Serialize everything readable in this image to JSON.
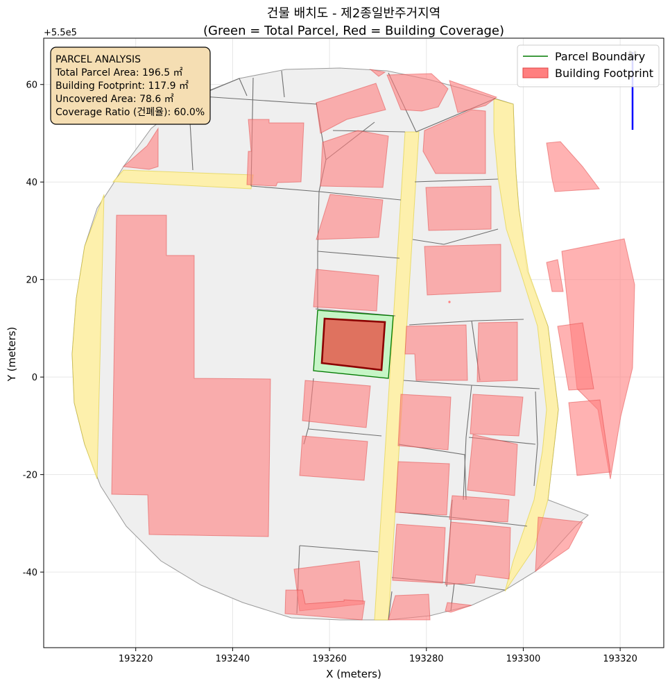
{
  "figure": {
    "title_line1": "건물 배치도 - 제2종일반주거지역",
    "title_line2": "(Green = Total Parcel, Red = Building Coverage)",
    "xlabel": "X (meters)",
    "ylabel": "Y (meters)",
    "y_offset_label": "+5.5e5"
  },
  "info_box": {
    "heading": "PARCEL ANALYSIS",
    "total_area": "Total Parcel Area: 196.5 ㎡",
    "footprint": "Building Footprint: 117.9 ㎡",
    "uncovered": "Uncovered Area: 78.6 ㎡",
    "coverage": "Coverage Ratio (건폐율): 60.0%"
  },
  "legend": {
    "parcel_label": "Parcel Boundary",
    "building_label": "Building Footprint"
  },
  "colors": {
    "parcel_edge": "#007a00",
    "parcel_fill": "#c6f5c6",
    "building_fill": "#ff7f7f",
    "building_edge": "#8b0000",
    "road": "#fff0a0",
    "background_parcels": "#f0f0f0"
  },
  "chart_data": {
    "type": "map",
    "title": "건물 배치도 - 제2종일반주거지역\n(Green = Total Parcel, Red = Building Coverage)",
    "xlabel": "X (meters)",
    "ylabel": "Y (meters)",
    "xlim": [
      193201,
      193329
    ],
    "ylim_offset": [
      -55.5,
      69.5
    ],
    "y_offset": 550000,
    "x_ticks": [
      193220,
      193240,
      193260,
      193280,
      193300,
      193320
    ],
    "y_ticks": [
      -40,
      -20,
      0,
      20,
      40,
      60
    ],
    "grid": true,
    "legend_position": "top-right",
    "metrics": {
      "total_parcel_area_m2": 196.5,
      "building_footprint_m2": 117.9,
      "uncovered_area_m2": 78.6,
      "coverage_ratio_percent": 60.0
    },
    "target_parcel": [
      [
        193258.4,
        550013.6
      ],
      [
        193273.1,
        550012.5
      ],
      [
        193270.1,
        549999.5
      ],
      [
        193255.6,
        550001.5
      ]
    ],
    "target_building": [
      [
        193259.5,
        550012.0
      ],
      [
        193271.0,
        550011.5
      ],
      [
        193269.7,
        550001.8
      ],
      [
        193258.0,
        550002.8
      ]
    ],
    "axis_ticks": {
      "x": [
        "193220",
        "193240",
        "193260",
        "193280",
        "193300",
        "193320"
      ],
      "y": [
        "-40",
        "-20",
        "0",
        "20",
        "40",
        "60"
      ]
    }
  }
}
